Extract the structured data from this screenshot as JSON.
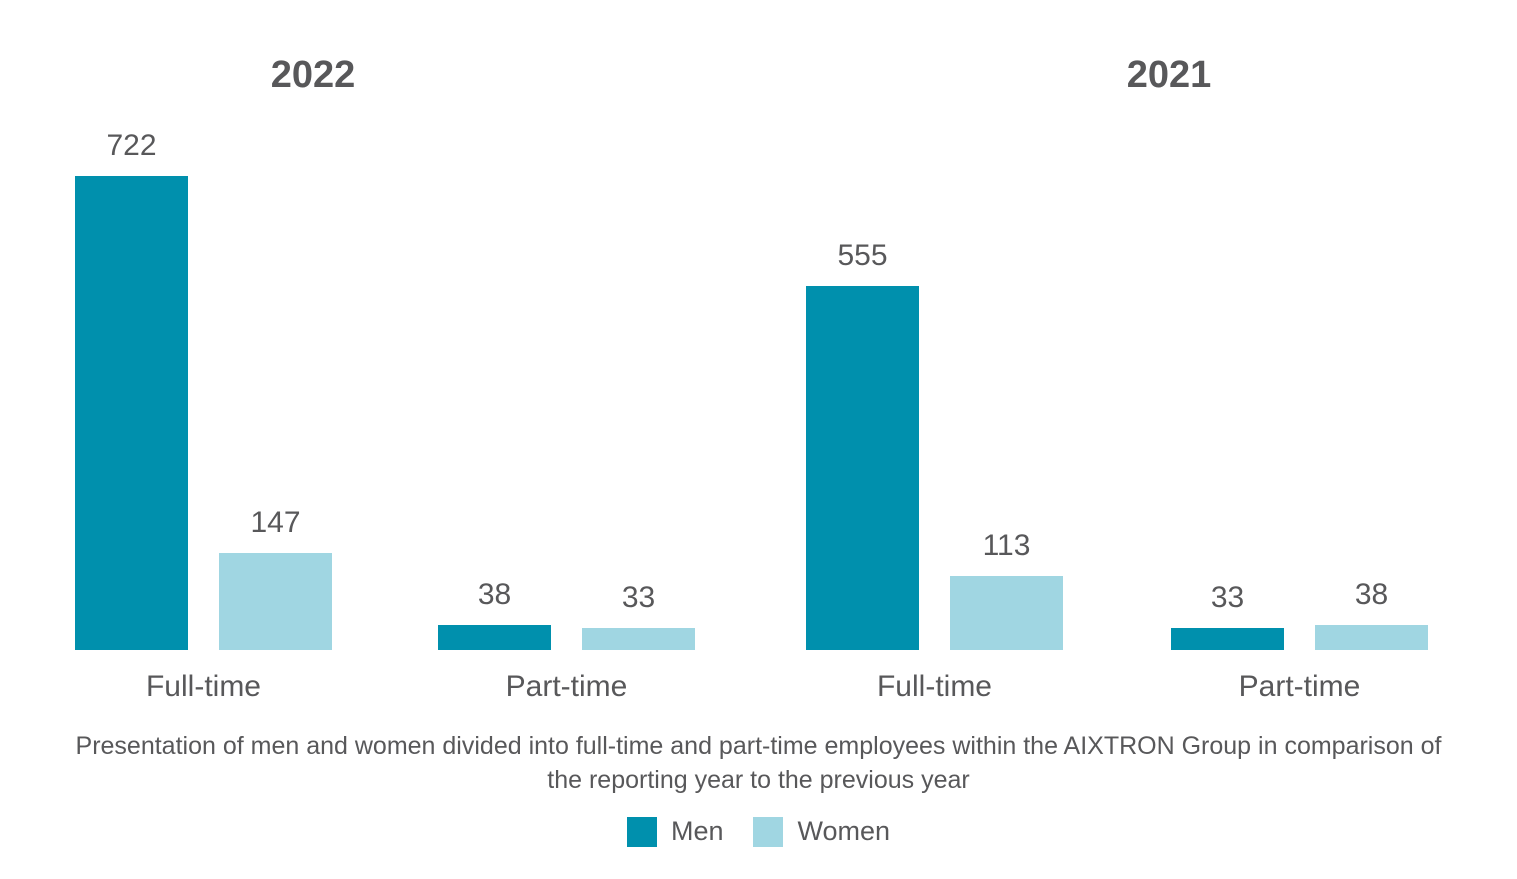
{
  "chart_data": {
    "type": "bar",
    "panels": [
      {
        "title": "2022",
        "categories": [
          "Full-time",
          "Part-time"
        ],
        "series": [
          {
            "name": "Men",
            "values": [
              722,
              38
            ]
          },
          {
            "name": "Women",
            "values": [
              147,
              33
            ]
          }
        ]
      },
      {
        "title": "2021",
        "categories": [
          "Full-time",
          "Part-time"
        ],
        "series": [
          {
            "name": "Men",
            "values": [
              555,
              33
            ]
          },
          {
            "name": "Women",
            "values": [
              113,
              38
            ]
          }
        ]
      }
    ],
    "legend": [
      "Men",
      "Women"
    ],
    "legend_position": "bottom",
    "grid": false,
    "value_labels": true,
    "ylim": [
      0,
      740
    ],
    "colors": {
      "men": "#0090AD",
      "women": "#A0D6E2",
      "text": "#58585A"
    },
    "caption_lines": [
      "Presentation of men and women divided into full-time and part-time employees within the AIXTRON Group in comparison of",
      "the reporting year to the previous year"
    ]
  }
}
